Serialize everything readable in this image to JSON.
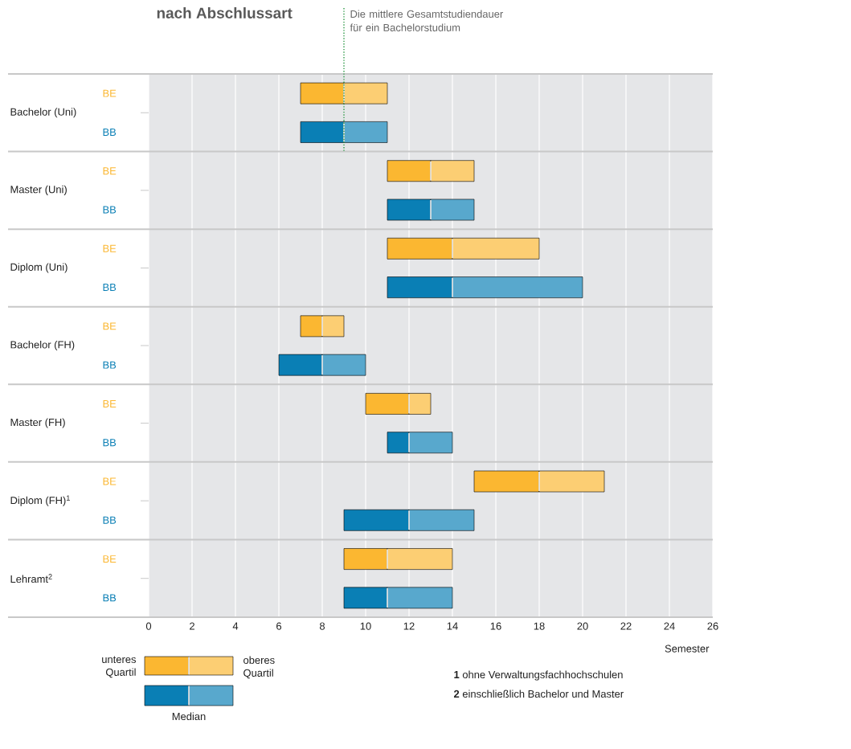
{
  "chart_data": {
    "type": "box",
    "orientation": "horizontal",
    "title": "nach Abschlussart",
    "xlabel": "Semester",
    "categories": [
      "Bachelor (Uni)",
      "Master (Uni)",
      "Diplom (Uni)",
      "Bachelor (FH)",
      "Master (FH)",
      "Diplom (FH)$^{1}$",
      "Lehramt$^{2}$"
    ],
    "series": [
      {
        "name": "BE",
        "color": "#fbb731",
        "boxes": [
          {
            "low": 7,
            "q1": 7,
            "median": 9,
            "q3": 11,
            "high": 11
          },
          {
            "low": 11,
            "q1": 11,
            "median": 13,
            "q3": 15,
            "high": 15
          },
          {
            "low": 11,
            "q1": 11,
            "median": 14,
            "q3": 18,
            "high": 18
          },
          {
            "low": 7,
            "q1": 7,
            "median": 8,
            "q3": 9,
            "high": 9
          },
          {
            "low": 10,
            "q1": 10,
            "median": 12,
            "q3": 13,
            "high": 13
          },
          {
            "low": 15,
            "q1": 15,
            "median": 18,
            "q3": 21,
            "high": 21
          },
          {
            "low": 9,
            "q1": 9,
            "median": 11,
            "q3": 14,
            "high": 14
          }
        ]
      },
      {
        "name": "BB",
        "color": "#0a7fb5",
        "boxes": [
          {
            "low": 7,
            "q1": 7,
            "median": 9,
            "q3": 11,
            "high": 11
          },
          {
            "low": 11,
            "q1": 11,
            "median": 13,
            "q3": 15,
            "high": 15
          },
          {
            "low": 11,
            "q1": 11,
            "median": 14,
            "q3": 20,
            "high": 20
          },
          {
            "low": 6,
            "q1": 6,
            "median": 8,
            "q3": 10,
            "high": 10
          },
          {
            "low": 11,
            "q1": 11,
            "median": 12,
            "q3": 14,
            "high": 14
          },
          {
            "low": 9,
            "q1": 9,
            "median": 12,
            "q3": 15,
            "high": 15
          },
          {
            "low": 9,
            "q1": 9,
            "median": 11,
            "q3": 14,
            "high": 14
          }
        ]
      }
    ],
    "xlim": [
      0,
      26
    ],
    "xticks": [
      0,
      2,
      4,
      6,
      8,
      10,
      12,
      14,
      16,
      18,
      20,
      22,
      24,
      26
    ],
    "grid": "x",
    "ref_lines": [
      {
        "axis": "x",
        "value": 9,
        "label": "Die mittlere Gesamtstudiendauer für ein Bachelorstudium",
        "color": "#2e9a48",
        "line_style": "dotted"
      }
    ],
    "annotations": [
      "unteres Quartil",
      "oberes Quartil",
      "Median",
      "**1** ohne Verwaltungsfachhochschulen",
      "**2** einschließlich Bachelor und Master"
    ]
  }
}
